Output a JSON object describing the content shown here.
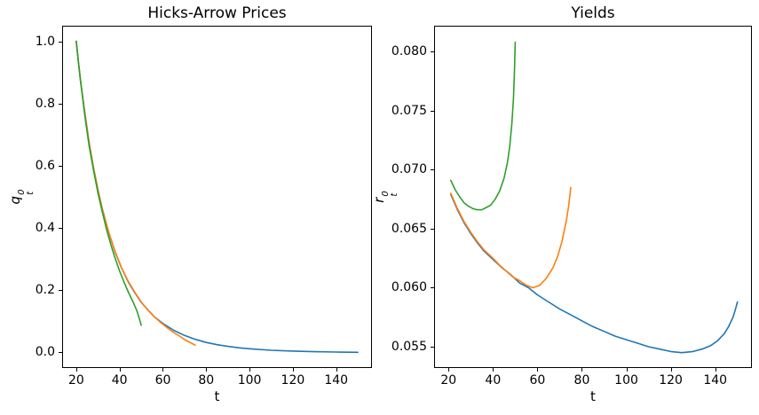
{
  "page": {
    "background": "#ffffff"
  },
  "colors": {
    "blue": "#1f77b4",
    "orange": "#ff7f0e",
    "green": "#2ca02c",
    "axis": "#000000"
  },
  "chart_data": [
    {
      "id": "hicks-arrow-prices",
      "type": "line",
      "title": "Hicks-Arrow Prices",
      "xlabel": "t",
      "ylabel": "q_t^0",
      "ylabel_parts": {
        "base": "q",
        "sup": "0",
        "sub": "t"
      },
      "xlim": [
        13.5,
        156.5
      ],
      "ylim": [
        -0.05,
        1.05
      ],
      "grid": false,
      "legend": "none",
      "xticks": {
        "values": [
          20,
          40,
          60,
          80,
          100,
          120,
          140
        ],
        "labels": [
          "20",
          "40",
          "60",
          "80",
          "100",
          "120",
          "140"
        ]
      },
      "yticks": {
        "values": [
          1.0,
          0.8,
          0.6,
          0.4,
          0.2,
          0.0
        ],
        "labels": [
          "1.0",
          "0.8",
          "0.6",
          "0.4",
          "0.2",
          "0.0"
        ]
      },
      "series": [
        {
          "name": "blue-series",
          "color": "#1f77b4",
          "points": [
            [
              20,
              1.0
            ],
            [
              21,
              0.935
            ],
            [
              22,
              0.874
            ],
            [
              23,
              0.82
            ],
            [
              24,
              0.77
            ],
            [
              26,
              0.672
            ],
            [
              28,
              0.593
            ],
            [
              30,
              0.523
            ],
            [
              32,
              0.462
            ],
            [
              35,
              0.385
            ],
            [
              38,
              0.322
            ],
            [
              41,
              0.27
            ],
            [
              44,
              0.227
            ],
            [
              47,
              0.192
            ],
            [
              50,
              0.161
            ],
            [
              52,
              0.145
            ],
            [
              56,
              0.115
            ],
            [
              60,
              0.093
            ],
            [
              65,
              0.071
            ],
            [
              70,
              0.0545
            ],
            [
              75,
              0.042
            ],
            [
              80,
              0.032
            ],
            [
              85,
              0.025
            ],
            [
              90,
              0.0194
            ],
            [
              95,
              0.0151
            ],
            [
              100,
              0.0117
            ],
            [
              110,
              0.0071
            ],
            [
              120,
              0.0043
            ],
            [
              130,
              0.0025
            ],
            [
              140,
              0.0013
            ],
            [
              150,
              0.0005
            ]
          ]
        },
        {
          "name": "orange-series",
          "color": "#ff7f0e",
          "points": [
            [
              20,
              1.0
            ],
            [
              21,
              0.934
            ],
            [
              22,
              0.874
            ],
            [
              23,
              0.819
            ],
            [
              24,
              0.769
            ],
            [
              26,
              0.672
            ],
            [
              28,
              0.592
            ],
            [
              30,
              0.524
            ],
            [
              32,
              0.461
            ],
            [
              35,
              0.386
            ],
            [
              38,
              0.323
            ],
            [
              41,
              0.271
            ],
            [
              44,
              0.229
            ],
            [
              47,
              0.194
            ],
            [
              50,
              0.162
            ],
            [
              53,
              0.137
            ],
            [
              56,
              0.115
            ],
            [
              59,
              0.0965
            ],
            [
              62,
              0.0793
            ],
            [
              65,
              0.064
            ],
            [
              68,
              0.0513
            ],
            [
              70,
              0.0412
            ],
            [
              72,
              0.034
            ],
            [
              74,
              0.0268
            ],
            [
              75,
              0.0232
            ]
          ]
        },
        {
          "name": "green-series",
          "color": "#2ca02c",
          "points": [
            [
              20,
              1.0
            ],
            [
              21,
              0.9335
            ],
            [
              22,
              0.873
            ],
            [
              24,
              0.76
            ],
            [
              26,
              0.662
            ],
            [
              28,
              0.585
            ],
            [
              30,
              0.513
            ],
            [
              32,
              0.452
            ],
            [
              34,
              0.396
            ],
            [
              36,
              0.346
            ],
            [
              38,
              0.302
            ],
            [
              40,
              0.262
            ],
            [
              42,
              0.227
            ],
            [
              44,
              0.195
            ],
            [
              46,
              0.166
            ],
            [
              48,
              0.134
            ],
            [
              49,
              0.112
            ],
            [
              50,
              0.088
            ]
          ]
        }
      ]
    },
    {
      "id": "yields",
      "type": "line",
      "title": "Yields",
      "xlabel": "t",
      "ylabel": "r_t^0",
      "ylabel_parts": {
        "base": "r",
        "sup": "0",
        "sub": "t"
      },
      "xlim": [
        13.5,
        156.5
      ],
      "ylim": [
        0.0532,
        0.0822
      ],
      "grid": false,
      "legend": "none",
      "xticks": {
        "values": [
          20,
          40,
          60,
          80,
          100,
          120,
          140
        ],
        "labels": [
          "20",
          "40",
          "60",
          "80",
          "100",
          "120",
          "140"
        ]
      },
      "yticks": {
        "values": [
          0.08,
          0.075,
          0.07,
          0.065,
          0.06,
          0.055
        ],
        "labels": [
          "0.080",
          "0.075",
          "0.070",
          "0.065",
          "0.060",
          "0.055"
        ]
      },
      "series": [
        {
          "name": "blue-series",
          "color": "#1f77b4",
          "points": [
            [
              21,
              0.0679
            ],
            [
              24,
              0.0666
            ],
            [
              27,
              0.0655
            ],
            [
              30,
              0.0646
            ],
            [
              33,
              0.0638
            ],
            [
              36,
              0.0631
            ],
            [
              40,
              0.0624
            ],
            [
              44,
              0.0617
            ],
            [
              48,
              0.0611
            ],
            [
              52,
              0.0604
            ],
            [
              56,
              0.06
            ],
            [
              60,
              0.0594
            ],
            [
              65,
              0.0588
            ],
            [
              70,
              0.0582
            ],
            [
              75,
              0.0577
            ],
            [
              80,
              0.0572
            ],
            [
              85,
              0.0567
            ],
            [
              90,
              0.0563
            ],
            [
              95,
              0.0559
            ],
            [
              100,
              0.0556
            ],
            [
              105,
              0.0553
            ],
            [
              110,
              0.055
            ],
            [
              115,
              0.0548
            ],
            [
              120,
              0.0546
            ],
            [
              125,
              0.0545
            ],
            [
              130,
              0.0546
            ],
            [
              134,
              0.0548
            ],
            [
              138,
              0.0551
            ],
            [
              141,
              0.0555
            ],
            [
              144,
              0.0561
            ],
            [
              146,
              0.0567
            ],
            [
              148,
              0.0575
            ],
            [
              149,
              0.0581
            ],
            [
              150,
              0.0588
            ]
          ]
        },
        {
          "name": "orange-series",
          "color": "#ff7f0e",
          "points": [
            [
              21,
              0.068
            ],
            [
              24,
              0.0667
            ],
            [
              27,
              0.0656
            ],
            [
              30,
              0.0647
            ],
            [
              33,
              0.0639
            ],
            [
              36,
              0.0632
            ],
            [
              40,
              0.0625
            ],
            [
              43,
              0.0619
            ],
            [
              46,
              0.0614
            ],
            [
              49,
              0.0609
            ],
            [
              52,
              0.0606
            ],
            [
              55,
              0.0602
            ],
            [
              58,
              0.06
            ],
            [
              61,
              0.0602
            ],
            [
              64,
              0.0608
            ],
            [
              67,
              0.0617
            ],
            [
              69,
              0.0626
            ],
            [
              71,
              0.0639
            ],
            [
              73,
              0.0657
            ],
            [
              74,
              0.0669
            ],
            [
              75,
              0.0685
            ]
          ]
        },
        {
          "name": "green-series",
          "color": "#2ca02c",
          "points": [
            [
              21,
              0.0691
            ],
            [
              23,
              0.0683
            ],
            [
              25,
              0.0677
            ],
            [
              27,
              0.0672
            ],
            [
              29,
              0.0669
            ],
            [
              31,
              0.0667
            ],
            [
              33,
              0.0666
            ],
            [
              35,
              0.0666
            ],
            [
              37,
              0.0668
            ],
            [
              39,
              0.067
            ],
            [
              41,
              0.0675
            ],
            [
              43,
              0.0682
            ],
            [
              45,
              0.0693
            ],
            [
              46.5,
              0.0706
            ],
            [
              47.5,
              0.0719
            ],
            [
              48.5,
              0.0739
            ],
            [
              49.2,
              0.076
            ],
            [
              49.7,
              0.0785
            ],
            [
              50,
              0.0808
            ]
          ]
        }
      ]
    }
  ]
}
